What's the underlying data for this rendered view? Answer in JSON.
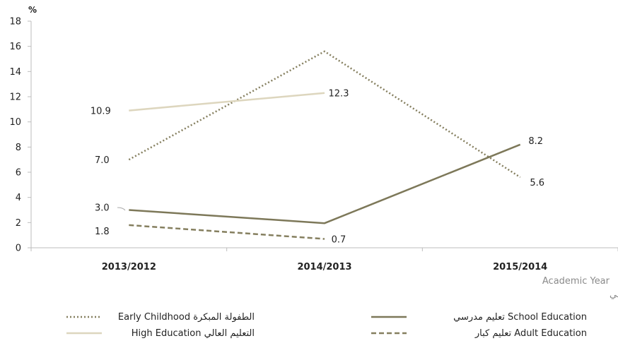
{
  "chart_data": {
    "type": "line",
    "unit_label": "%",
    "categories": [
      "2013/2012",
      "2014/2013",
      "2015/2014"
    ],
    "ylim": [
      0,
      18
    ],
    "yticks": [
      0,
      2,
      4,
      6,
      8,
      10,
      12,
      14,
      16,
      18
    ],
    "xlabel_en": "Academic Year",
    "xlabel_ar": "العام الأكاديمي",
    "grid": false,
    "legend_position": "bottom",
    "series": [
      {
        "key": "early",
        "name": "Early Childhood الطفولة المبكرة",
        "values": [
          7.0,
          15.6,
          5.6
        ],
        "labels": [
          "7.0",
          null,
          "5.6"
        ],
        "color": "#857f5f",
        "style": "dotted"
      },
      {
        "key": "high",
        "name": "High Education التعليم العالي",
        "values": [
          10.9,
          12.3,
          null
        ],
        "labels": [
          "10.9",
          "12.3",
          null
        ],
        "color": "#ddd6be",
        "style": "solid"
      },
      {
        "key": "school",
        "name": "تعليم مدرسي School Education",
        "values": [
          3.0,
          1.95,
          8.2
        ],
        "labels": [
          "3.0",
          null,
          "8.2"
        ],
        "color": "#7d7859",
        "style": "solid"
      },
      {
        "key": "adult",
        "name": "تعليم كبار Adult Education",
        "values": [
          1.8,
          0.7,
          null
        ],
        "labels": [
          "1.8",
          "0.7",
          null
        ],
        "color": "#857f5f",
        "style": "dashed"
      }
    ]
  }
}
